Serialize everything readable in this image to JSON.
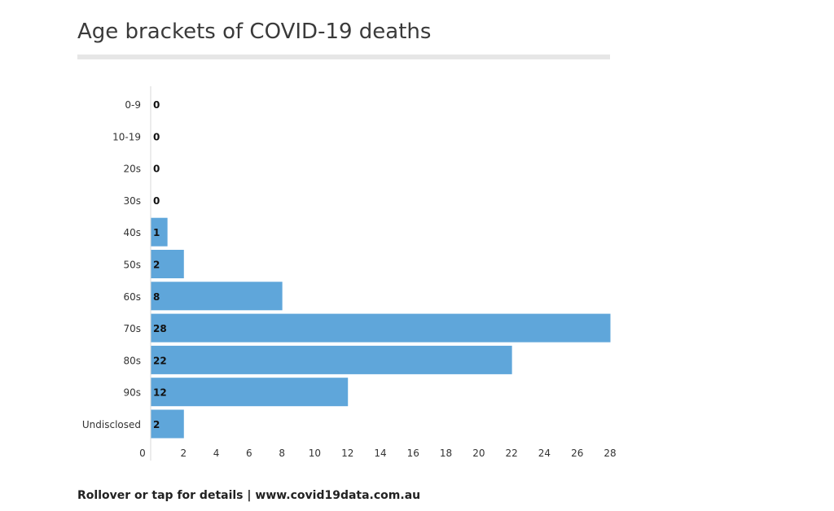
{
  "footer": {
    "text": "Rollover or tap for details | www.covid19data.com.au"
  },
  "chart_data": {
    "type": "bar",
    "orientation": "horizontal",
    "title": "Age brackets of COVID-19 deaths",
    "xlabel": "",
    "ylabel": "",
    "categories": [
      "0-9",
      "10-19",
      "20s",
      "30s",
      "40s",
      "50s",
      "60s",
      "70s",
      "80s",
      "90s",
      "Undisclosed"
    ],
    "values": [
      0,
      0,
      0,
      0,
      1,
      2,
      8,
      28,
      22,
      12,
      2
    ],
    "xlim": [
      0,
      28
    ],
    "x_ticks": [
      0,
      2,
      4,
      6,
      8,
      10,
      12,
      14,
      16,
      18,
      20,
      22,
      24,
      26,
      28
    ],
    "grid": false,
    "legend": "none",
    "bar_color": "#5fa6da",
    "data_labels": true
  }
}
